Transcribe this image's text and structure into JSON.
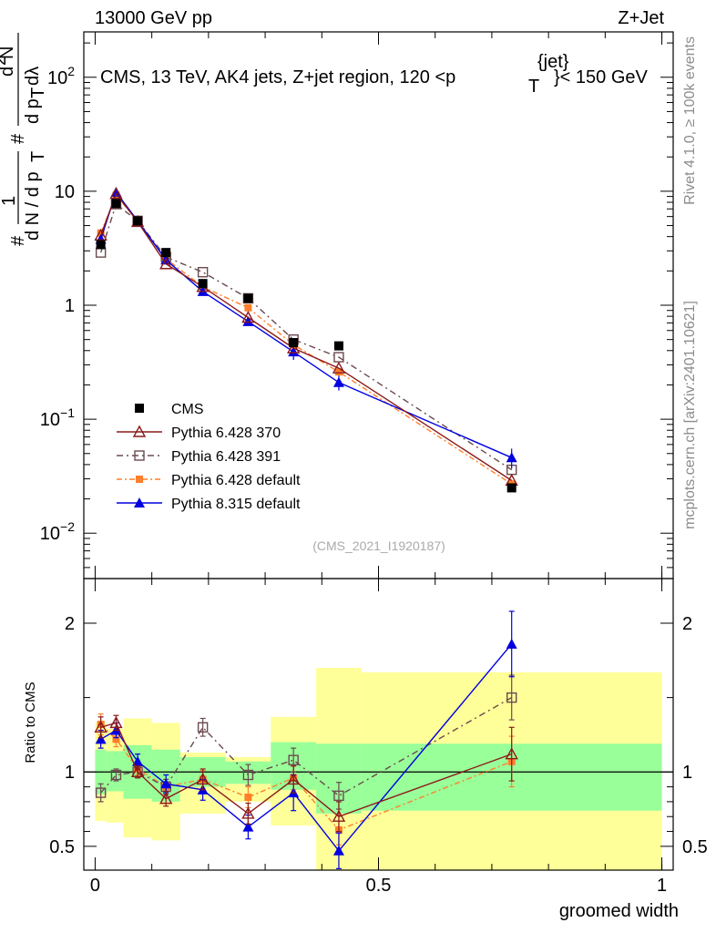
{
  "header": {
    "left": "13000 GeV pp",
    "right": "Z+Jet"
  },
  "side_labels": {
    "rivet": "Rivet 4.1.0, ≥ 100k events",
    "mcplots": "mcplots.cern.ch [arXiv:2401.10621]"
  },
  "colors": {
    "cms": "#000000",
    "p6_370": "#8b1a1a",
    "p6_391": "#6b4a4f",
    "p6_default": "#ff7f2a",
    "p8_default": "#0000e0",
    "band_inner": "#99ff99",
    "band_outer": "#ffff99"
  },
  "chart_data": [
    {
      "type": "scatter",
      "name": "main",
      "title": "CMS, 13 TeV, AK4 jets, Z+jet region, 120 <p_T^{jet}< 150 GeV",
      "title_parts": {
        "pre": "CMS, 13 TeV, AK4 jets, Z+jet region, 120 <p",
        "sub": "T",
        "sup": "{jet}",
        "post": "}< 150 GeV"
      },
      "ylabel_parts": {
        "hash": "#",
        "one": "1",
        "dn": "d N / d p",
        "t": "T",
        "hash2": "#",
        "d2n": "d",
        "two": "2",
        "n": "N",
        "dpt": "d p",
        "dlambda": "dλ"
      },
      "watermark": "(CMS_2021_I1920187)",
      "yscale": "log",
      "ylim": [
        0.004,
        250
      ],
      "xlim": [
        -0.02,
        1.02
      ],
      "ytick_labels": [
        {
          "value": 0.01,
          "base": "10",
          "exp": "−2"
        },
        {
          "value": 0.1,
          "base": "10",
          "exp": "−1"
        },
        {
          "value": 1,
          "text": "1"
        },
        {
          "value": 10,
          "text": "10"
        },
        {
          "value": 100,
          "base": "10",
          "exp": "2"
        }
      ],
      "x": [
        0.01,
        0.037,
        0.075,
        0.125,
        0.19,
        0.27,
        0.35,
        0.43,
        0.735
      ],
      "series": [
        {
          "name": "CMS",
          "key": "cms",
          "marker": "square",
          "values": [
            3.4,
            7.8,
            5.5,
            2.9,
            1.55,
            1.15,
            0.47,
            0.44,
            0.025
          ]
        },
        {
          "name": "Pythia 6.428 370",
          "key": "p6_370",
          "marker": "triangle-open",
          "dash": "",
          "values": [
            4.1,
            9.5,
            5.4,
            2.3,
            1.45,
            0.78,
            0.42,
            0.28,
            0.029
          ]
        },
        {
          "name": "Pythia 6.428 391",
          "key": "p6_391",
          "marker": "square-open",
          "dash": "7,4,2,4",
          "values": [
            2.9,
            7.7,
            5.5,
            2.65,
            1.95,
            1.15,
            0.5,
            0.35,
            0.036
          ]
        },
        {
          "name": "Pythia 6.428 default",
          "key": "p6_default",
          "marker": "square-small",
          "dash": "6,3,2,3",
          "values": [
            4.3,
            9.2,
            5.5,
            2.55,
            1.45,
            0.95,
            0.45,
            0.26,
            0.027
          ]
        },
        {
          "name": "Pythia 8.315 default",
          "key": "p8_default",
          "marker": "triangle",
          "dash": "",
          "values": [
            3.8,
            9.8,
            5.5,
            2.5,
            1.32,
            0.72,
            0.39,
            0.21,
            0.046
          ]
        }
      ]
    },
    {
      "type": "scatter",
      "name": "ratio",
      "ylabel": "Ratio to CMS",
      "xlabel": "groomed width",
      "ylim": [
        0.34,
        2.3
      ],
      "xlim": [
        -0.02,
        1.02
      ],
      "xticks": [
        0,
        0.5,
        1
      ],
      "xtick_labels": [
        "0",
        "0.5",
        "1"
      ],
      "yticks": [
        0.5,
        1,
        2
      ],
      "ytick_labels": [
        "0.5",
        "1",
        "2"
      ],
      "bands": [
        {
          "x0": 0.0,
          "x1": 0.02,
          "inner": [
            0.85,
            1.15
          ],
          "outer": [
            0.67,
            1.33
          ]
        },
        {
          "x0": 0.02,
          "x1": 0.05,
          "inner": [
            0.87,
            1.14
          ],
          "outer": [
            0.66,
            1.29
          ]
        },
        {
          "x0": 0.05,
          "x1": 0.1,
          "inner": [
            0.82,
            1.18
          ],
          "outer": [
            0.56,
            1.36
          ]
        },
        {
          "x0": 0.1,
          "x1": 0.15,
          "inner": [
            0.8,
            1.15
          ],
          "outer": [
            0.54,
            1.33
          ]
        },
        {
          "x0": 0.15,
          "x1": 0.23,
          "inner": [
            0.9,
            1.1
          ],
          "outer": [
            0.72,
            1.13
          ]
        },
        {
          "x0": 0.23,
          "x1": 0.31,
          "inner": [
            0.92,
            1.07
          ],
          "outer": [
            0.8,
            1.1
          ]
        },
        {
          "x0": 0.31,
          "x1": 0.39,
          "inner": [
            0.88,
            1.2
          ],
          "outer": [
            0.64,
            1.37
          ]
        },
        {
          "x0": 0.39,
          "x1": 0.47,
          "inner": [
            0.72,
            1.19
          ],
          "outer": [
            0.34,
            1.7
          ]
        },
        {
          "x0": 0.47,
          "x1": 1.0,
          "inner": [
            0.74,
            1.19
          ],
          "outer": [
            0.34,
            1.67
          ]
        }
      ],
      "x": [
        0.01,
        0.037,
        0.075,
        0.125,
        0.19,
        0.27,
        0.35,
        0.43,
        0.735
      ],
      "series": [
        {
          "name": "Pythia 6.428 370",
          "key": "p6_370",
          "marker": "triangle-open",
          "dash": "",
          "values": [
            1.3,
            1.33,
            1.0,
            0.82,
            0.95,
            0.72,
            0.95,
            0.7,
            1.12
          ],
          "errors": [
            0.07,
            0.05,
            0.04,
            0.05,
            0.07,
            0.07,
            0.09,
            0.1,
            0.18
          ]
        },
        {
          "name": "Pythia 6.428 391",
          "key": "p6_391",
          "marker": "square-open",
          "dash": "7,4,2,4",
          "values": [
            0.86,
            0.98,
            1.0,
            0.9,
            1.3,
            0.98,
            1.08,
            0.84,
            1.5
          ],
          "errors": [
            0.06,
            0.04,
            0.04,
            0.05,
            0.06,
            0.07,
            0.08,
            0.09,
            0.15
          ]
        },
        {
          "name": "Pythia 6.428 default",
          "key": "p6_default",
          "marker": "square-small",
          "dash": "6,3,2,3",
          "values": [
            1.32,
            1.22,
            1.02,
            0.9,
            0.95,
            0.83,
            0.96,
            0.61,
            1.07
          ],
          "errors": [
            0.07,
            0.05,
            0.04,
            0.05,
            0.06,
            0.07,
            0.08,
            0.1,
            0.17
          ]
        },
        {
          "name": "Pythia 8.315 default",
          "key": "p8_default",
          "marker": "triangle",
          "dash": "",
          "values": [
            1.22,
            1.28,
            1.07,
            0.92,
            0.88,
            0.63,
            0.86,
            0.47,
            1.86
          ],
          "errors": [
            0.06,
            0.05,
            0.05,
            0.06,
            0.07,
            0.08,
            0.12,
            0.12,
            0.22
          ]
        }
      ]
    }
  ]
}
